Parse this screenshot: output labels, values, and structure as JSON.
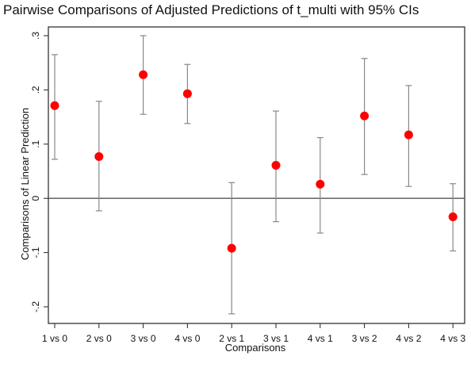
{
  "chart_data": {
    "type": "scatter",
    "subtype": "point-estimates-with-confidence-intervals",
    "title": "Pairwise Comparisons of Adjusted Predictions of t_multi with 95% CIs",
    "xlabel": "Comparisons",
    "ylabel": "Comparisons of Linear Prediction",
    "ylim": [
      -0.23,
      0.31
    ],
    "y_ticks": [
      -0.2,
      -0.1,
      0,
      0.1,
      0.2,
      0.3
    ],
    "y_tick_labels": [
      "-.2",
      "-.1",
      "0",
      ".1",
      ".2",
      ".3"
    ],
    "reference_line_y": 0,
    "grid": false,
    "categories": [
      "1 vs 0",
      "2 vs 0",
      "3 vs 0",
      "4 vs 0",
      "2 vs 1",
      "3 vs 1",
      "4 vs 1",
      "3 vs 2",
      "4 vs 2",
      "4 vs 3"
    ],
    "estimates": [
      0.171,
      0.077,
      0.228,
      0.193,
      -0.092,
      0.061,
      0.026,
      0.152,
      0.117,
      -0.034
    ],
    "ci_lower": [
      0.072,
      -0.023,
      0.155,
      0.138,
      -0.213,
      -0.043,
      -0.064,
      0.044,
      0.022,
      -0.097
    ],
    "ci_upper": [
      0.265,
      0.179,
      0.3,
      0.247,
      0.029,
      0.161,
      0.112,
      0.258,
      0.208,
      0.027
    ],
    "colors": {
      "marker": "#ff0000",
      "ci": "#888888",
      "axis": "#222222",
      "reference_line": "#555555"
    }
  }
}
